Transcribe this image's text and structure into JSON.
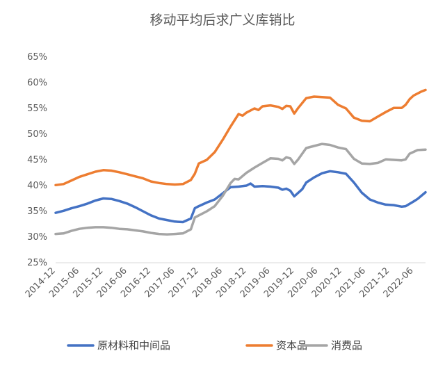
{
  "chart_data": {
    "type": "line",
    "title": "移动平均后求广义库销比",
    "xlabel": "",
    "ylabel": "",
    "ylim": [
      25,
      65
    ],
    "y_ticks": [
      25,
      30,
      35,
      40,
      45,
      50,
      55,
      60,
      65
    ],
    "y_tick_labels": [
      "25%",
      "30%",
      "35%",
      "40%",
      "45%",
      "50%",
      "55%",
      "60%",
      "65%"
    ],
    "x_ticks": [
      "2014-12",
      "2015-06",
      "2015-12",
      "2016-06",
      "2016-12",
      "2017-06",
      "2017-12",
      "2018-06",
      "2018-12",
      "2019-06",
      "2019-12",
      "2020-06",
      "2020-12",
      "2021-06",
      "2021-12",
      "2022-06"
    ],
    "x_start": "2014-12",
    "x_end": "2022-09",
    "grid": false,
    "legend_position": "bottom",
    "series": [
      {
        "name": "原材料和中间品",
        "color": "#4472C4",
        "values": [
          [
            "2014-12",
            34.7
          ],
          [
            "2015-02",
            35.1
          ],
          [
            "2015-04",
            35.6
          ],
          [
            "2015-06",
            36.0
          ],
          [
            "2015-08",
            36.5
          ],
          [
            "2015-10",
            37.1
          ],
          [
            "2015-12",
            37.5
          ],
          [
            "2016-02",
            37.4
          ],
          [
            "2016-04",
            37.0
          ],
          [
            "2016-06",
            36.5
          ],
          [
            "2016-08",
            35.8
          ],
          [
            "2016-10",
            35.0
          ],
          [
            "2016-12",
            34.2
          ],
          [
            "2017-02",
            33.6
          ],
          [
            "2017-04",
            33.3
          ],
          [
            "2017-06",
            33.0
          ],
          [
            "2017-08",
            32.9
          ],
          [
            "2017-10",
            33.6
          ],
          [
            "2017-11",
            35.6
          ],
          [
            "2017-12",
            36.0
          ],
          [
            "2018-02",
            36.7
          ],
          [
            "2018-04",
            37.3
          ],
          [
            "2018-06",
            38.5
          ],
          [
            "2018-08",
            39.7
          ],
          [
            "2018-10",
            39.8
          ],
          [
            "2018-12",
            40.0
          ],
          [
            "2019-01",
            40.4
          ],
          [
            "2019-02",
            39.8
          ],
          [
            "2019-04",
            39.9
          ],
          [
            "2019-06",
            39.8
          ],
          [
            "2019-08",
            39.6
          ],
          [
            "2019-09",
            39.2
          ],
          [
            "2019-10",
            39.4
          ],
          [
            "2019-11",
            39.0
          ],
          [
            "2019-12",
            37.9
          ],
          [
            "2020-02",
            39.3
          ],
          [
            "2020-03",
            40.6
          ],
          [
            "2020-05",
            41.6
          ],
          [
            "2020-07",
            42.4
          ],
          [
            "2020-09",
            42.8
          ],
          [
            "2020-11",
            42.6
          ],
          [
            "2021-01",
            42.3
          ],
          [
            "2021-03",
            40.6
          ],
          [
            "2021-05",
            38.6
          ],
          [
            "2021-07",
            37.3
          ],
          [
            "2021-09",
            36.7
          ],
          [
            "2021-11",
            36.3
          ],
          [
            "2022-01",
            36.2
          ],
          [
            "2022-03",
            35.9
          ],
          [
            "2022-04",
            36.0
          ],
          [
            "2022-06",
            36.9
          ],
          [
            "2022-07",
            37.4
          ],
          [
            "2022-09",
            38.7
          ]
        ]
      },
      {
        "name": "资本品",
        "color": "#ED7D31",
        "values": [
          [
            "2014-12",
            40.1
          ],
          [
            "2015-02",
            40.3
          ],
          [
            "2015-04",
            41.0
          ],
          [
            "2015-06",
            41.7
          ],
          [
            "2015-08",
            42.2
          ],
          [
            "2015-10",
            42.7
          ],
          [
            "2015-12",
            43.0
          ],
          [
            "2016-02",
            42.9
          ],
          [
            "2016-04",
            42.6
          ],
          [
            "2016-06",
            42.2
          ],
          [
            "2016-08",
            41.8
          ],
          [
            "2016-10",
            41.4
          ],
          [
            "2016-12",
            40.8
          ],
          [
            "2017-02",
            40.5
          ],
          [
            "2017-04",
            40.3
          ],
          [
            "2017-06",
            40.2
          ],
          [
            "2017-08",
            40.3
          ],
          [
            "2017-10",
            41.1
          ],
          [
            "2017-11",
            42.3
          ],
          [
            "2017-12",
            44.3
          ],
          [
            "2018-02",
            45.0
          ],
          [
            "2018-04",
            46.5
          ],
          [
            "2018-06",
            48.9
          ],
          [
            "2018-08",
            51.5
          ],
          [
            "2018-10",
            53.9
          ],
          [
            "2018-11",
            53.6
          ],
          [
            "2018-12",
            54.2
          ],
          [
            "2019-02",
            55.0
          ],
          [
            "2019-03",
            54.7
          ],
          [
            "2019-04",
            55.4
          ],
          [
            "2019-06",
            55.6
          ],
          [
            "2019-08",
            55.3
          ],
          [
            "2019-09",
            54.9
          ],
          [
            "2019-10",
            55.5
          ],
          [
            "2019-11",
            55.4
          ],
          [
            "2019-12",
            54.0
          ],
          [
            "2020-01",
            55.1
          ],
          [
            "2020-03",
            57.0
          ],
          [
            "2020-05",
            57.3
          ],
          [
            "2020-07",
            57.2
          ],
          [
            "2020-09",
            57.1
          ],
          [
            "2020-11",
            55.7
          ],
          [
            "2021-01",
            55.0
          ],
          [
            "2021-03",
            53.2
          ],
          [
            "2021-05",
            52.6
          ],
          [
            "2021-07",
            52.5
          ],
          [
            "2021-09",
            53.4
          ],
          [
            "2021-11",
            54.3
          ],
          [
            "2022-01",
            55.1
          ],
          [
            "2022-03",
            55.1
          ],
          [
            "2022-04",
            55.7
          ],
          [
            "2022-05",
            56.8
          ],
          [
            "2022-06",
            57.5
          ],
          [
            "2022-08",
            58.3
          ],
          [
            "2022-09",
            58.6
          ]
        ]
      },
      {
        "name": "消费品",
        "color": "#A5A5A5",
        "values": [
          [
            "2014-12",
            30.6
          ],
          [
            "2015-02",
            30.7
          ],
          [
            "2015-04",
            31.2
          ],
          [
            "2015-06",
            31.6
          ],
          [
            "2015-08",
            31.8
          ],
          [
            "2015-10",
            31.9
          ],
          [
            "2015-12",
            31.9
          ],
          [
            "2016-02",
            31.8
          ],
          [
            "2016-04",
            31.6
          ],
          [
            "2016-06",
            31.5
          ],
          [
            "2016-08",
            31.3
          ],
          [
            "2016-10",
            31.1
          ],
          [
            "2016-12",
            30.8
          ],
          [
            "2017-02",
            30.6
          ],
          [
            "2017-04",
            30.5
          ],
          [
            "2017-06",
            30.6
          ],
          [
            "2017-08",
            30.7
          ],
          [
            "2017-10",
            31.5
          ],
          [
            "2017-11",
            33.8
          ],
          [
            "2017-12",
            34.2
          ],
          [
            "2018-02",
            35.0
          ],
          [
            "2018-04",
            36.0
          ],
          [
            "2018-06",
            38.0
          ],
          [
            "2018-08",
            40.5
          ],
          [
            "2018-09",
            41.3
          ],
          [
            "2018-10",
            41.2
          ],
          [
            "2018-12",
            42.5
          ],
          [
            "2019-02",
            43.5
          ],
          [
            "2019-04",
            44.4
          ],
          [
            "2019-06",
            45.3
          ],
          [
            "2019-08",
            45.2
          ],
          [
            "2019-09",
            44.9
          ],
          [
            "2019-10",
            45.5
          ],
          [
            "2019-11",
            45.3
          ],
          [
            "2019-12",
            44.2
          ],
          [
            "2020-01",
            45.1
          ],
          [
            "2020-03",
            47.3
          ],
          [
            "2020-05",
            47.7
          ],
          [
            "2020-07",
            48.1
          ],
          [
            "2020-09",
            47.9
          ],
          [
            "2020-11",
            47.4
          ],
          [
            "2021-01",
            47.1
          ],
          [
            "2021-03",
            45.2
          ],
          [
            "2021-05",
            44.3
          ],
          [
            "2021-07",
            44.2
          ],
          [
            "2021-09",
            44.4
          ],
          [
            "2021-11",
            45.1
          ],
          [
            "2022-01",
            45.0
          ],
          [
            "2022-03",
            44.9
          ],
          [
            "2022-04",
            45.1
          ],
          [
            "2022-05",
            46.2
          ],
          [
            "2022-07",
            46.9
          ],
          [
            "2022-09",
            47.0
          ]
        ]
      }
    ]
  }
}
